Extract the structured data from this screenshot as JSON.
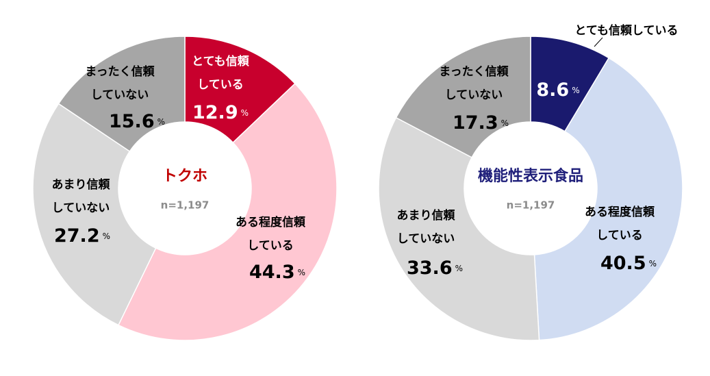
{
  "chart_data": [
    {
      "type": "donut",
      "title": "トクホ",
      "subtitle": "n=1,197",
      "title_color": "#C00000",
      "unit": "%",
      "categories": [
        [
          "とても信頼",
          "している"
        ],
        [
          "ある程度信頼",
          "している"
        ],
        [
          "あまり信頼",
          "していない"
        ],
        [
          "まったく信頼",
          "していない"
        ]
      ],
      "values": [
        12.9,
        44.3,
        27.2,
        15.6
      ],
      "colors": [
        "#C8002D",
        "#FFC7D2",
        "#D9D9D9",
        "#A6A6A6"
      ]
    },
    {
      "type": "donut",
      "title": "機能性表示食品",
      "subtitle": "n=1,197",
      "title_color": "#1F1F7A",
      "unit": "%",
      "categories": [
        [
          "とても信頼している"
        ],
        [
          "ある程度信頼",
          "している"
        ],
        [
          "あまり信頼",
          "していない"
        ],
        [
          "まったく信頼",
          "していない"
        ]
      ],
      "values": [
        8.6,
        40.5,
        33.6,
        17.3
      ],
      "colors": [
        "#1A1A6E",
        "#D0DCF2",
        "#D9D9D9",
        "#A6A6A6"
      ]
    }
  ]
}
